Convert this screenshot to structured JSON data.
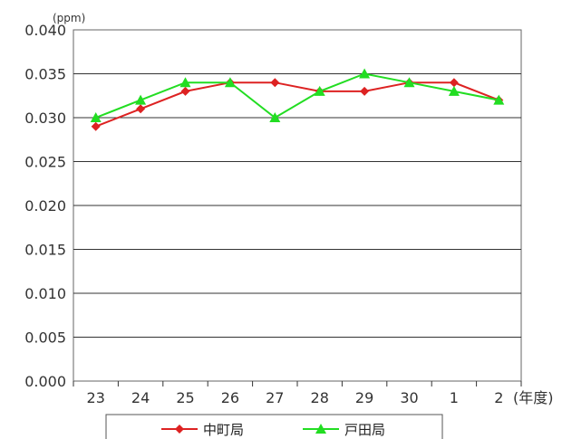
{
  "chart_data": {
    "type": "line",
    "title": "",
    "y_unit": "(ppm)",
    "x_unit": "(年度)",
    "categories": [
      "23",
      "24",
      "25",
      "26",
      "27",
      "28",
      "29",
      "30",
      "1",
      "2"
    ],
    "y_ticks": [
      "0.000",
      "0.005",
      "0.010",
      "0.015",
      "0.020",
      "0.025",
      "0.030",
      "0.035",
      "0.040"
    ],
    "ylim": [
      0,
      0.04
    ],
    "grid": true,
    "legend_position": "bottom",
    "series": [
      {
        "name": "中町局",
        "color": "#dd2222",
        "marker": "diamond",
        "values": [
          0.029,
          0.031,
          0.033,
          0.034,
          0.034,
          0.033,
          0.033,
          0.034,
          0.034,
          0.032
        ]
      },
      {
        "name": "戸田局",
        "color": "#22dd22",
        "marker": "triangle",
        "values": [
          0.03,
          0.032,
          0.034,
          0.034,
          0.03,
          0.033,
          0.035,
          0.034,
          0.033,
          0.032
        ]
      }
    ]
  }
}
